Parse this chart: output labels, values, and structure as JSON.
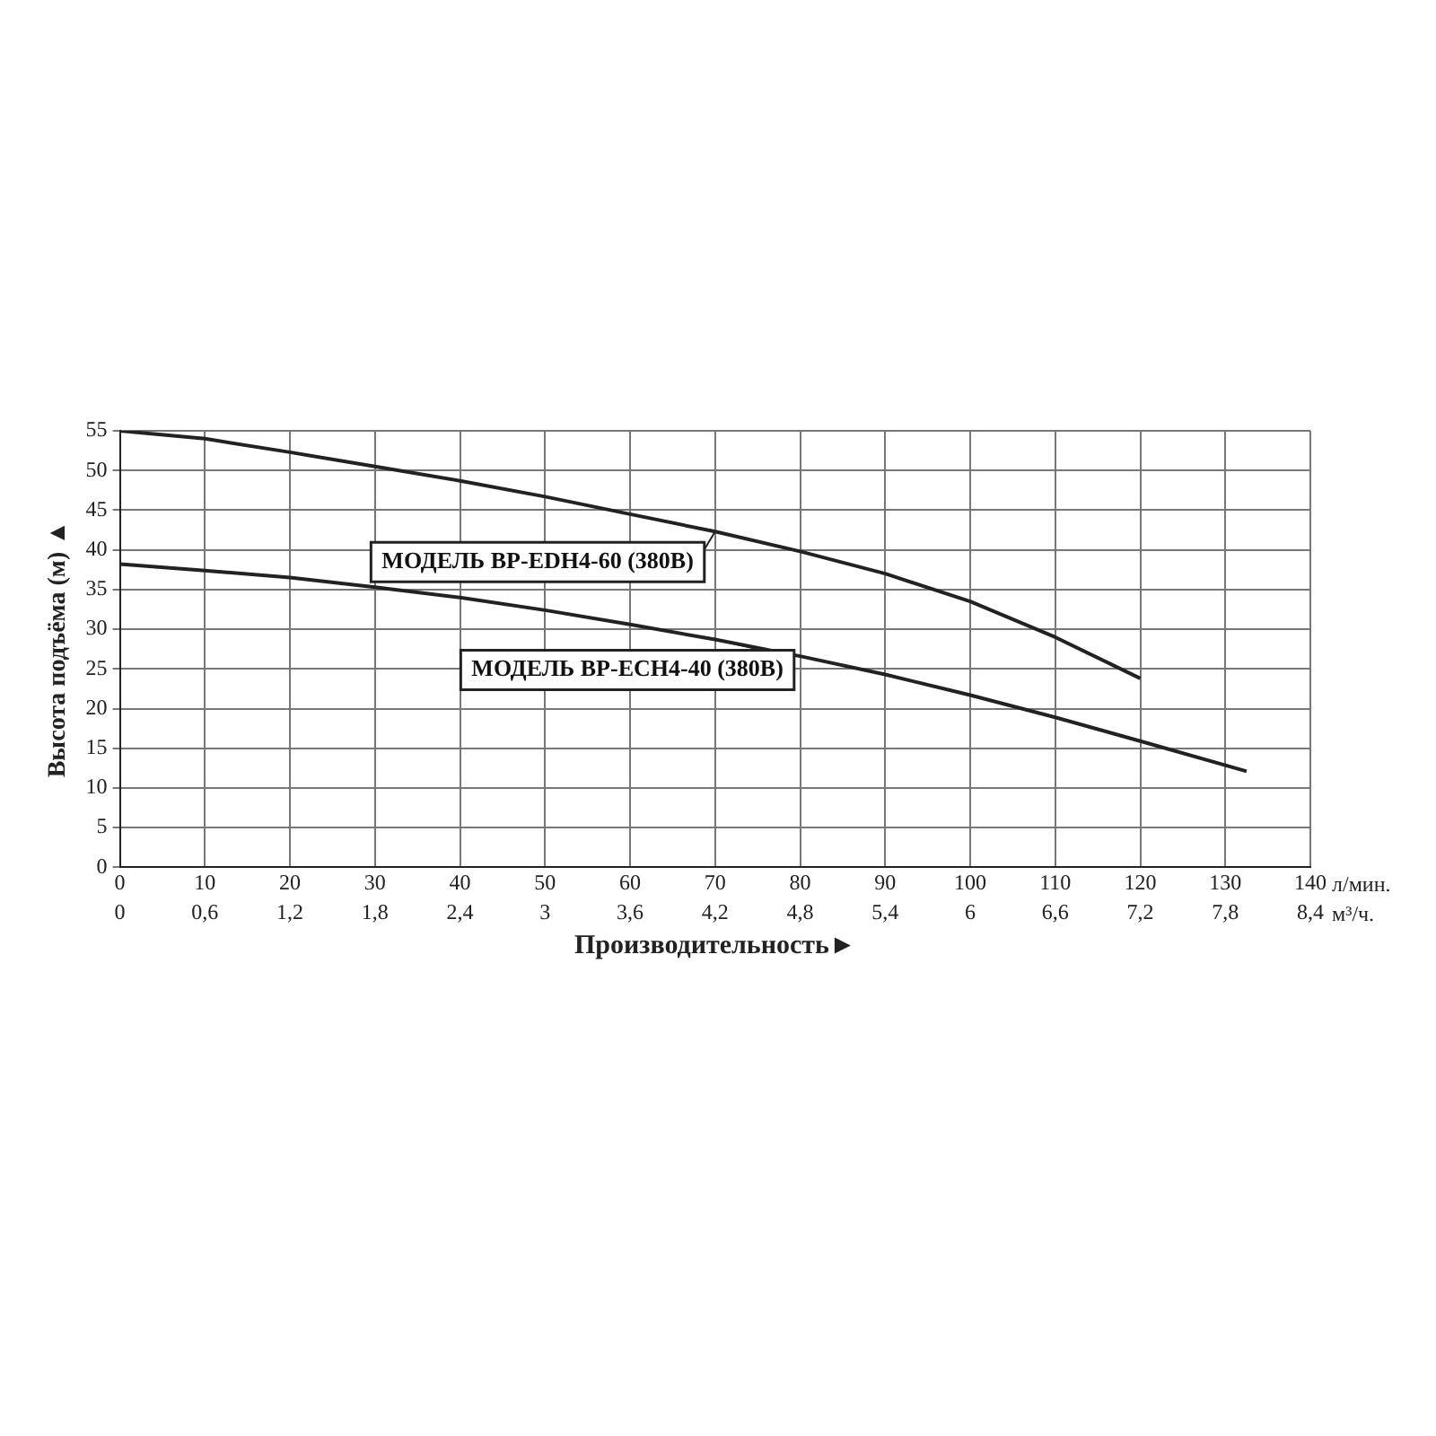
{
  "chart_data": {
    "type": "line",
    "xlabel": "Производительность►",
    "ylabel": "Высота подъёма (м) ▲",
    "xlim": [
      0,
      140
    ],
    "xticks": [
      0,
      10,
      20,
      30,
      40,
      50,
      60,
      70,
      80,
      90,
      100,
      110,
      120,
      130,
      140
    ],
    "x2lim": [
      0,
      8.4
    ],
    "x2ticks": [
      0,
      {
        "value": 0.6,
        "label": "0,6"
      },
      {
        "value": 1.2,
        "label": "1,2"
      },
      {
        "value": 1.8,
        "label": "1,8"
      },
      {
        "value": 2.4,
        "label": "2,4"
      },
      3,
      {
        "value": 3.6,
        "label": "3,6"
      },
      {
        "value": 4.2,
        "label": "4,2"
      },
      {
        "value": 4.8,
        "label": "4,8"
      },
      {
        "value": 5.4,
        "label": "5,4"
      },
      6,
      {
        "value": 6.6,
        "label": "6,6"
      },
      {
        "value": 7.2,
        "label": "7,2"
      },
      {
        "value": 7.8,
        "label": "7,8"
      },
      {
        "value": 8.4,
        "label": "8,4"
      }
    ],
    "ylim": [
      0,
      55
    ],
    "yticks": [
      0,
      5,
      10,
      15,
      20,
      25,
      30,
      35,
      40,
      45,
      50,
      55
    ],
    "grid": true,
    "legend": "center",
    "marker": "none",
    "line_style": "solid",
    "annotations": [
      "л/мин.",
      "м³/ч."
    ],
    "series": [
      {
        "name": "МОДЕЛЬ BP-EDH4-60 (380В)",
        "color": "#222222",
        "x": [
          0,
          10,
          20,
          30,
          40,
          50,
          60,
          70,
          80,
          90,
          100,
          110,
          120
        ],
        "values": [
          55,
          54,
          52.3,
          50.5,
          48.7,
          46.7,
          44.5,
          42.3,
          39.8,
          37,
          33.5,
          29,
          23.8
        ]
      },
      {
        "name": "МОДЕЛЬ BP-ECH4-40 (380В)",
        "color": "#222222",
        "x": [
          0,
          10,
          20,
          30,
          40,
          50,
          60,
          70,
          80,
          90,
          100,
          110,
          120,
          132.5
        ],
        "values": [
          38.2,
          37.4,
          36.5,
          35.3,
          34,
          32.4,
          30.6,
          28.7,
          26.6,
          24.3,
          21.7,
          18.9,
          15.9,
          12.1
        ]
      }
    ]
  }
}
